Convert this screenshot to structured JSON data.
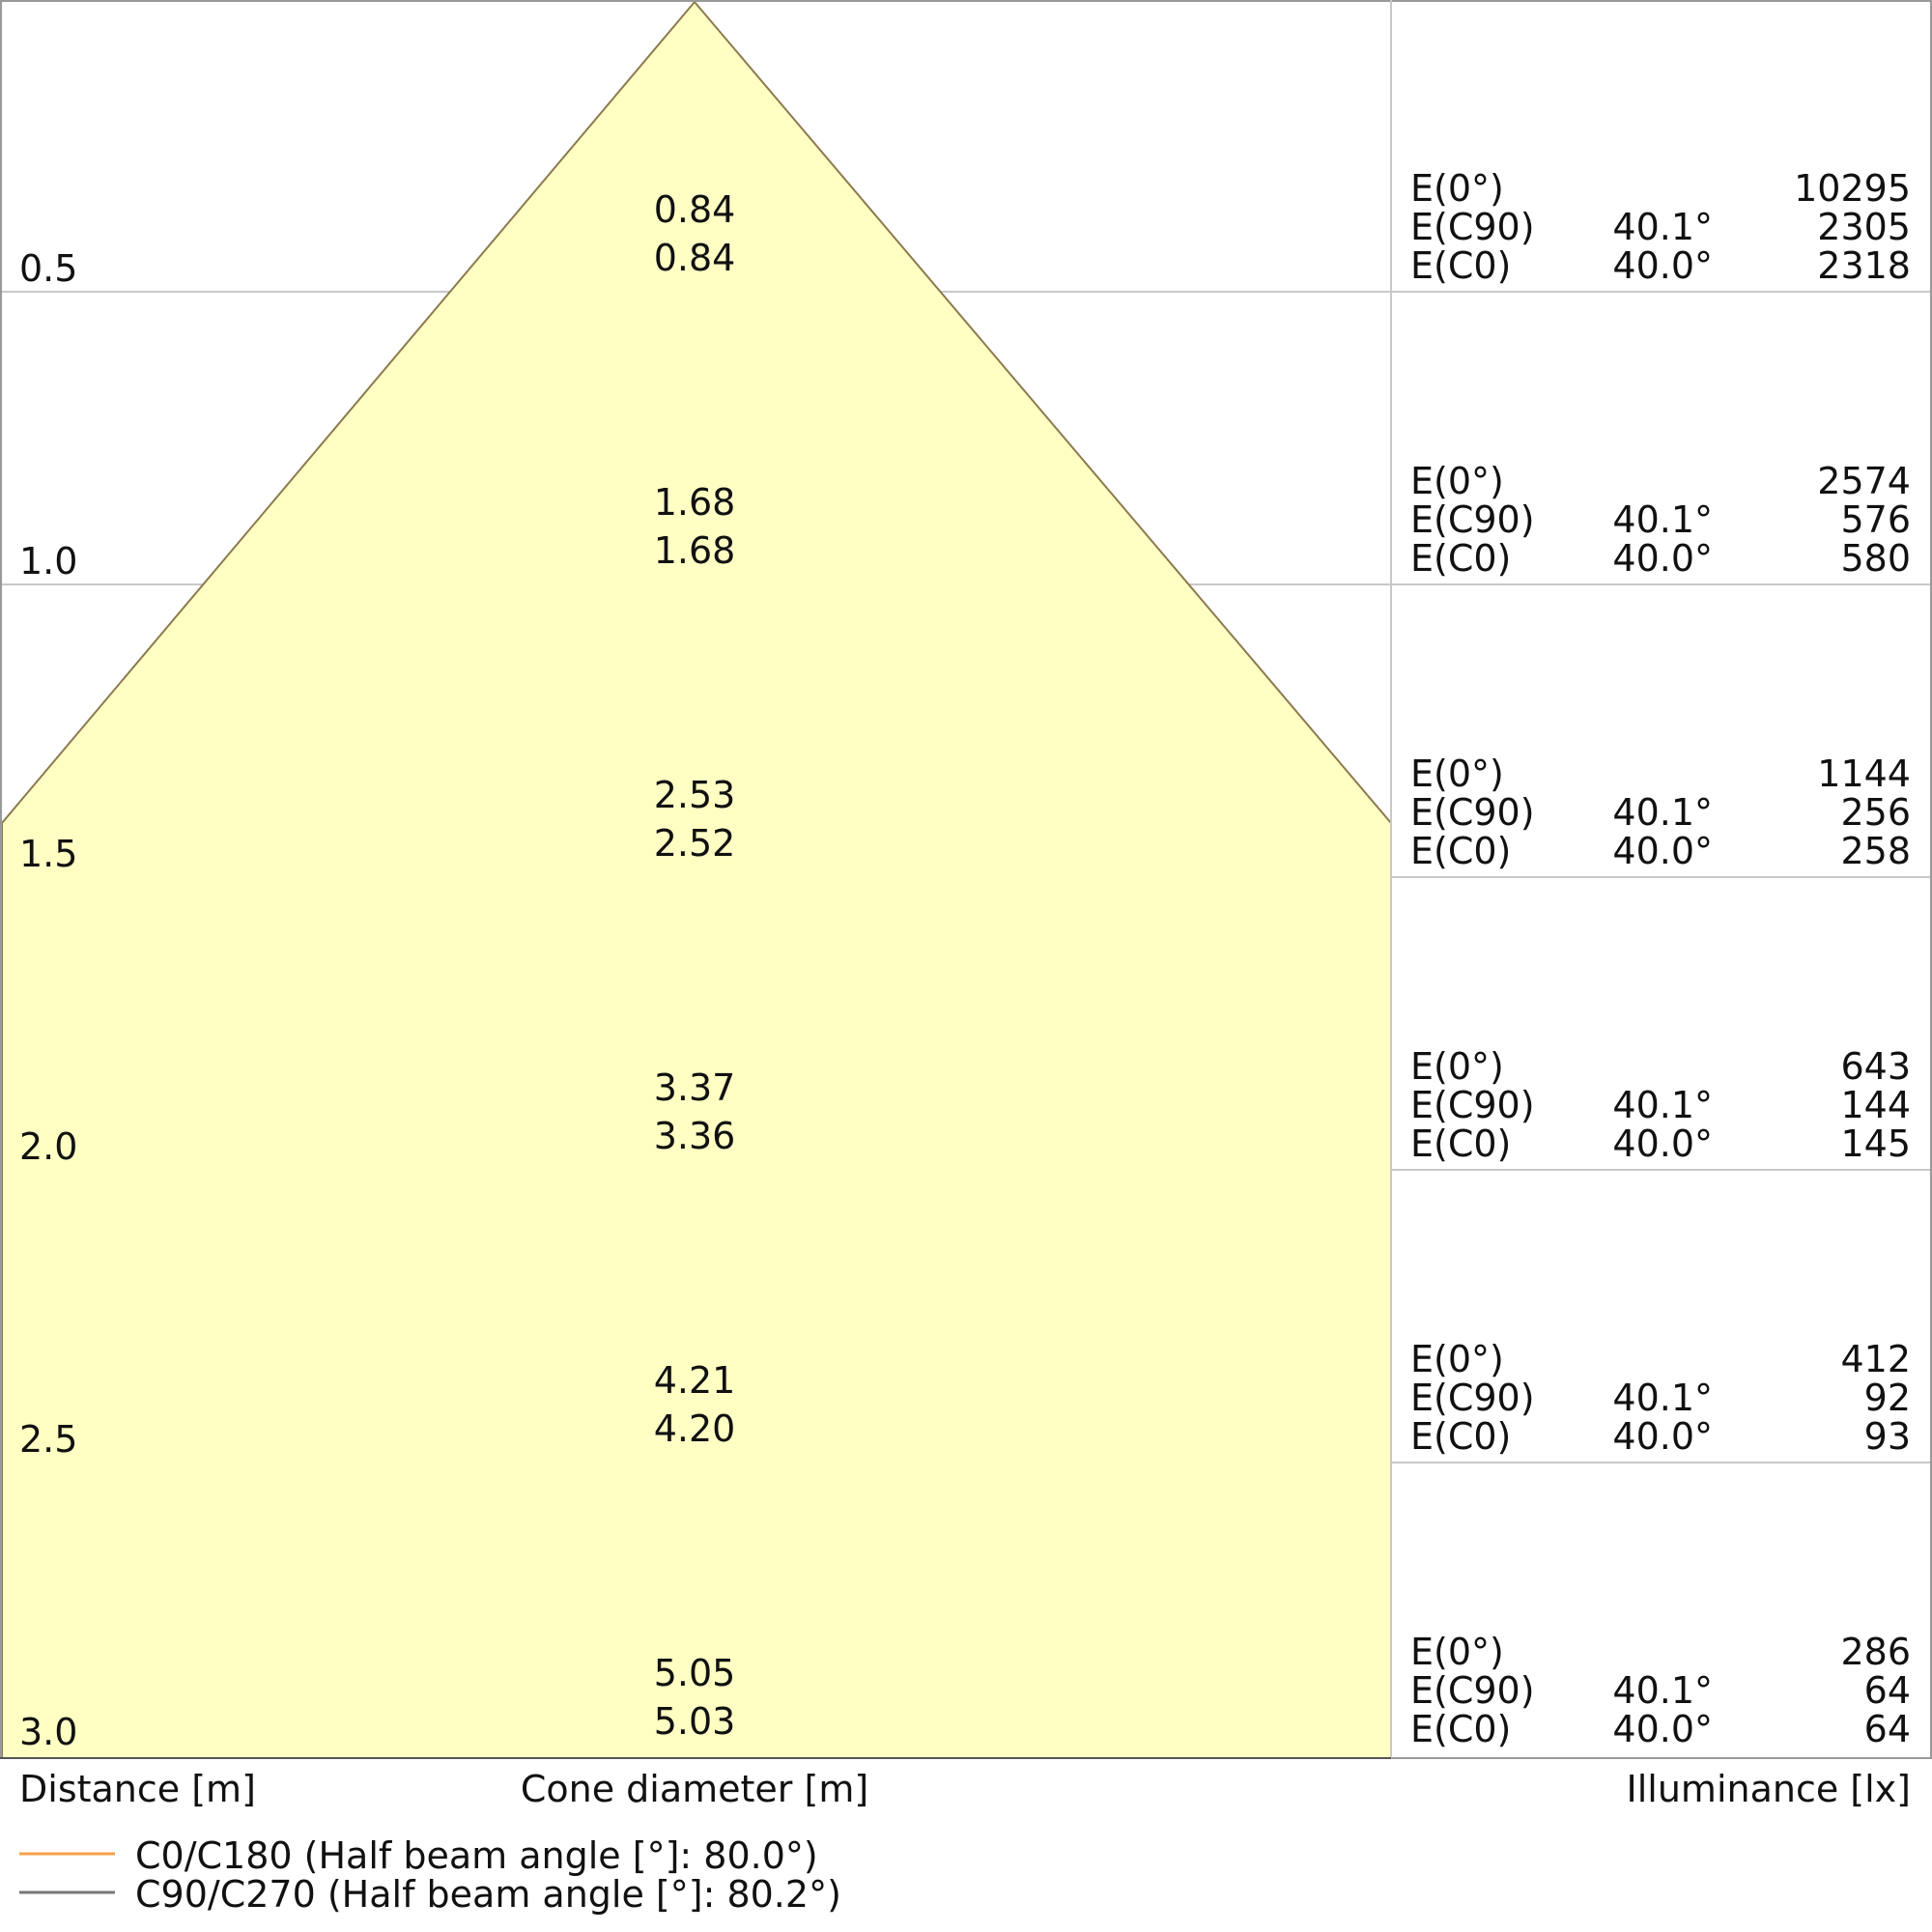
{
  "chart_data": {
    "type": "table",
    "xlabel": "Cone diameter [m]",
    "ylabel": "Distance [m]",
    "right_label": "Illuminance [lx]",
    "colors": {
      "cone_fill": "#ffffc4",
      "cone_edge": "#8c7a4e",
      "c0_line": "#f5a04a",
      "c90_line": "#777777",
      "grid": "#c8c8c8"
    },
    "rows": [
      {
        "distance": "0.5",
        "diam_c0c180": "0.84",
        "diam_c90c270": "0.84",
        "e0": "10295",
        "ec90_angle": "40.1°",
        "ec90": "2305",
        "ec0_angle": "40.0°",
        "ec0": "2318"
      },
      {
        "distance": "1.0",
        "diam_c0c180": "1.68",
        "diam_c90c270": "1.68",
        "e0": "2574",
        "ec90_angle": "40.1°",
        "ec90": "576",
        "ec0_angle": "40.0°",
        "ec0": "580"
      },
      {
        "distance": "1.5",
        "diam_c0c180": "2.53",
        "diam_c90c270": "2.52",
        "e0": "1144",
        "ec90_angle": "40.1°",
        "ec90": "256",
        "ec0_angle": "40.0°",
        "ec0": "258"
      },
      {
        "distance": "2.0",
        "diam_c0c180": "3.37",
        "diam_c90c270": "3.36",
        "e0": "643",
        "ec90_angle": "40.1°",
        "ec90": "144",
        "ec0_angle": "40.0°",
        "ec0": "145"
      },
      {
        "distance": "2.5",
        "diam_c0c180": "4.21",
        "diam_c90c270": "4.20",
        "e0": "412",
        "ec90_angle": "40.1°",
        "ec90": "92",
        "ec0_angle": "40.0°",
        "ec0": "93"
      },
      {
        "distance": "3.0",
        "diam_c0c180": "5.05",
        "diam_c90c270": "5.03",
        "e0": "286",
        "ec90_angle": "40.1°",
        "ec90": "64",
        "ec0_angle": "40.0°",
        "ec0": "64"
      }
    ],
    "row_labels": {
      "e0": "E(0°)",
      "ec90": "E(C90)",
      "ec0": "E(C0)"
    },
    "legend": [
      {
        "name": "C0/C180 (Half beam angle [°]: 80.0°)",
        "half_beam_angle": 80.0
      },
      {
        "name": "C90/C270 (Half beam angle [°]: 80.2°)",
        "half_beam_angle": 80.2
      }
    ]
  }
}
